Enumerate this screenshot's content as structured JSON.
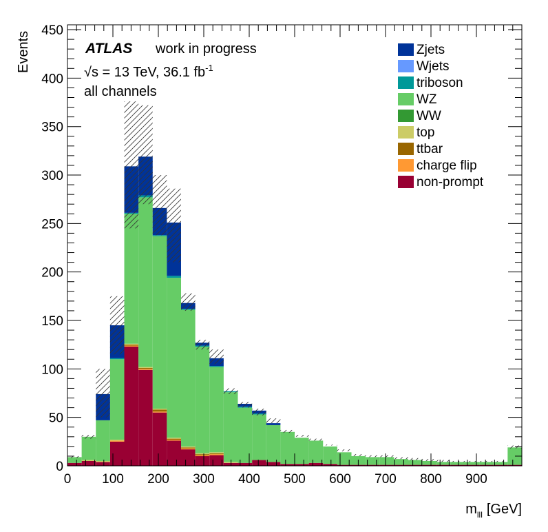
{
  "chart_data": {
    "type": "bar",
    "stacked": true,
    "title": "",
    "xlabel_main": "m",
    "xlabel_sub": "lll",
    "xlabel_unit": "[GeV]",
    "ylabel": "Events",
    "xlim": [
      0,
      1000
    ],
    "ylim": [
      0,
      455
    ],
    "x_ticks": [
      "0",
      "100",
      "200",
      "300",
      "400",
      "500",
      "600",
      "700",
      "800",
      "900"
    ],
    "y_ticks": [
      "0",
      "50",
      "100",
      "150",
      "200",
      "250",
      "300",
      "350",
      "400",
      "450"
    ],
    "bin_edges": [
      0,
      31.25,
      62.5,
      93.75,
      125,
      156.25,
      187.5,
      218.75,
      250,
      281.25,
      312.5,
      343.75,
      375,
      406.25,
      437.5,
      468.75,
      500,
      531.25,
      562.5,
      593.75,
      625,
      656.25,
      687.5,
      718.75,
      750,
      781.25,
      812.5,
      843.75,
      875,
      906.25,
      937.5,
      968.75,
      1000
    ],
    "series": [
      {
        "name": "non-prompt",
        "color": "#990033",
        "values": [
          3,
          5,
          4,
          25,
          123,
          99,
          55,
          26,
          17,
          10,
          11,
          3,
          3,
          6,
          4,
          2,
          2,
          3,
          2,
          1,
          1,
          1,
          1,
          1,
          1,
          1,
          1,
          1,
          1,
          1,
          1,
          1
        ]
      },
      {
        "name": "charge flip",
        "color": "#ff9933",
        "values": [
          0,
          0,
          0,
          1,
          1,
          1,
          1,
          1,
          1,
          1,
          1,
          0,
          0,
          0,
          0,
          0,
          0,
          0,
          0,
          0,
          0,
          0,
          0,
          0,
          0,
          0,
          0,
          0,
          0,
          0,
          0,
          0
        ]
      },
      {
        "name": "ttbar",
        "color": "#996600",
        "values": [
          0,
          0,
          0,
          0,
          1,
          1,
          2,
          1,
          1,
          1,
          1,
          0,
          0,
          0,
          0,
          0,
          0,
          0,
          0,
          0,
          0,
          0,
          0,
          0,
          0,
          0,
          0,
          0,
          0,
          0,
          0,
          0
        ]
      },
      {
        "name": "top",
        "color": "#cccc66",
        "values": [
          0,
          1,
          1,
          1,
          1,
          1,
          1,
          1,
          1,
          1,
          1,
          1,
          0,
          0,
          0,
          0,
          0,
          0,
          0,
          0,
          0,
          0,
          0,
          0,
          0,
          0,
          0,
          0,
          0,
          0,
          0,
          0
        ]
      },
      {
        "name": "WW",
        "color": "#339933",
        "values": [
          0,
          0,
          0,
          0,
          0,
          0,
          0,
          0,
          0,
          0,
          0,
          0,
          0,
          0,
          0,
          0,
          0,
          0,
          0,
          0,
          0,
          0,
          0,
          0,
          0,
          0,
          0,
          0,
          0,
          0,
          0,
          0
        ]
      },
      {
        "name": "WZ",
        "color": "#66cc66",
        "values": [
          6,
          24,
          42,
          83,
          134,
          175,
          178,
          165,
          141,
          110,
          88,
          72,
          57,
          47,
          38,
          33,
          27,
          23,
          18,
          13,
          9,
          8,
          8,
          6,
          5,
          4,
          3,
          3,
          3,
          3,
          3,
          18
        ]
      },
      {
        "name": "triboson",
        "color": "#009999",
        "values": [
          0,
          0,
          0,
          1,
          1,
          2,
          1,
          2,
          1,
          1,
          1,
          1,
          1,
          1,
          0,
          0,
          0,
          0,
          0,
          0,
          0,
          0,
          0,
          0,
          0,
          0,
          0,
          0,
          0,
          0,
          0,
          0
        ]
      },
      {
        "name": "Wjets",
        "color": "#6699ff",
        "values": [
          0,
          0,
          0,
          0,
          0,
          0,
          0,
          0,
          0,
          0,
          0,
          0,
          0,
          0,
          0,
          0,
          0,
          0,
          0,
          0,
          0,
          0,
          0,
          0,
          0,
          0,
          0,
          0,
          0,
          0,
          0,
          0
        ]
      },
      {
        "name": "Zjets",
        "color": "#003399",
        "values": [
          0,
          0,
          27,
          34,
          48,
          40,
          28,
          55,
          6,
          3,
          8,
          0,
          3,
          3,
          2,
          0,
          0,
          0,
          0,
          0,
          0,
          0,
          0,
          0,
          0,
          0,
          0,
          0,
          0,
          0,
          0,
          0
        ]
      }
    ],
    "uncertainty_band": {
      "up": [
        10,
        32,
        100,
        175,
        376,
        372,
        300,
        286,
        178,
        130,
        120,
        80,
        66,
        59,
        49,
        37,
        32,
        28,
        22,
        17,
        12,
        11,
        11,
        9,
        8,
        7,
        6,
        5,
        5,
        5,
        5,
        21
      ],
      "down": [
        8,
        28,
        50,
        115,
        245,
        270,
        238,
        210,
        160,
        120,
        105,
        74,
        60,
        52,
        44,
        34,
        30,
        26,
        21,
        15,
        10,
        9,
        9,
        7,
        6,
        5,
        4,
        4,
        4,
        4,
        4,
        18
      ]
    },
    "legend_order": [
      "Zjets",
      "Wjets",
      "triboson",
      "WZ",
      "WW",
      "top",
      "ttbar",
      "charge flip",
      "non-prompt"
    ],
    "legend_placement": "top-right"
  },
  "annotations": {
    "atlas": "ATLAS",
    "status": "work in progress",
    "sqrt": "√s",
    "energy": " = 13 TeV, 36.1 fb",
    "lumi_exp": "-1",
    "channels": "all channels"
  }
}
